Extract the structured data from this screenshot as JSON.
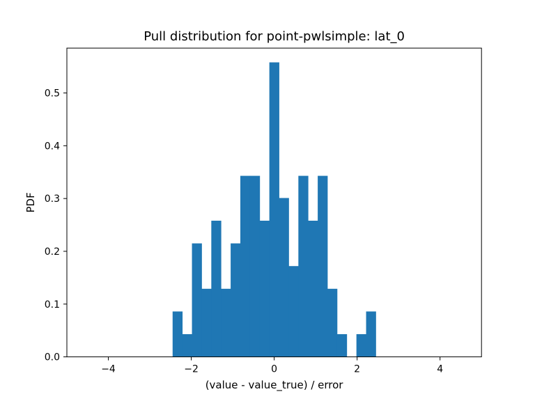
{
  "chart_data": {
    "type": "bar",
    "title": "Pull distribution for point-pwlsimple: lat_0",
    "xlabel": "(value - value_true) / error",
    "ylabel": "PDF",
    "xlim": [
      -5.0,
      5.0
    ],
    "ylim": [
      0.0,
      0.585
    ],
    "grid": false,
    "bar_color": "#1f77b4",
    "bin_width": 0.2333,
    "bins": [
      {
        "x0": -2.45,
        "x1": -2.2167,
        "value": 0.086
      },
      {
        "x0": -2.2167,
        "x1": -1.9833,
        "value": 0.043
      },
      {
        "x0": -1.9833,
        "x1": -1.75,
        "value": 0.215
      },
      {
        "x0": -1.75,
        "x1": -1.5167,
        "value": 0.129
      },
      {
        "x0": -1.5167,
        "x1": -1.2833,
        "value": 0.258
      },
      {
        "x0": -1.2833,
        "x1": -1.05,
        "value": 0.129
      },
      {
        "x0": -1.05,
        "x1": -0.8167,
        "value": 0.215
      },
      {
        "x0": -0.8167,
        "x1": -0.5833,
        "value": 0.343
      },
      {
        "x0": -0.5833,
        "x1": -0.35,
        "value": 0.343
      },
      {
        "x0": -0.35,
        "x1": -0.1167,
        "value": 0.258
      },
      {
        "x0": -0.1167,
        "x1": 0.1167,
        "value": 0.558
      },
      {
        "x0": 0.1167,
        "x1": 0.35,
        "value": 0.301
      },
      {
        "x0": 0.35,
        "x1": 0.5833,
        "value": 0.172
      },
      {
        "x0": 0.5833,
        "x1": 0.8167,
        "value": 0.343
      },
      {
        "x0": 0.8167,
        "x1": 1.05,
        "value": 0.258
      },
      {
        "x0": 1.05,
        "x1": 1.2833,
        "value": 0.343
      },
      {
        "x0": 1.2833,
        "x1": 1.5167,
        "value": 0.129
      },
      {
        "x0": 1.5167,
        "x1": 1.75,
        "value": 0.043
      },
      {
        "x0": 1.75,
        "x1": 1.9833,
        "value": 0.0
      },
      {
        "x0": 1.9833,
        "x1": 2.2167,
        "value": 0.043
      },
      {
        "x0": 2.2167,
        "x1": 2.45,
        "value": 0.086
      }
    ],
    "x_ticks": [
      {
        "value": -4,
        "label": "−4"
      },
      {
        "value": -2,
        "label": "−2"
      },
      {
        "value": 0,
        "label": "0"
      },
      {
        "value": 2,
        "label": "2"
      },
      {
        "value": 4,
        "label": "4"
      }
    ],
    "y_ticks": [
      {
        "value": 0.0,
        "label": "0.0"
      },
      {
        "value": 0.1,
        "label": "0.1"
      },
      {
        "value": 0.2,
        "label": "0.2"
      },
      {
        "value": 0.3,
        "label": "0.3"
      },
      {
        "value": 0.4,
        "label": "0.4"
      },
      {
        "value": 0.5,
        "label": "0.5"
      }
    ]
  }
}
